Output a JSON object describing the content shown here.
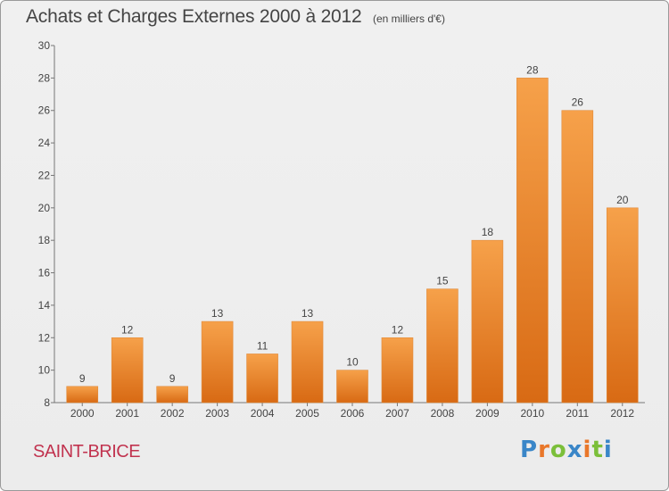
{
  "header": {
    "title": "Achats et Charges Externes 2000 à 2012",
    "subtitle": "(en milliers d'€)"
  },
  "footer": {
    "city": "SAINT-BRICE",
    "brand": "Proxiti"
  },
  "colors": {
    "bar_light": "#f6a14a",
    "bar_dark": "#d86a14",
    "city": "#c1334f",
    "brand_letters": [
      "#3a86c8",
      "#e9772a",
      "#7bbf3a",
      "#3a86c8",
      "#e9772a",
      "#7bbf3a",
      "#3a86c8"
    ]
  },
  "chart_data": {
    "type": "bar",
    "title": "Achats et Charges Externes 2000 à 2012",
    "subtitle": "(en milliers d'€)",
    "categories": [
      "2000",
      "2001",
      "2002",
      "2003",
      "2004",
      "2005",
      "2006",
      "2007",
      "2008",
      "2009",
      "2010",
      "2011",
      "2012"
    ],
    "values": [
      9,
      12,
      9,
      13,
      11,
      13,
      10,
      12,
      15,
      18,
      28,
      26,
      20
    ],
    "ylim": [
      8,
      30
    ],
    "yticks": [
      8,
      10,
      12,
      14,
      16,
      18,
      20,
      22,
      24,
      26,
      28,
      30
    ],
    "grid": false,
    "data_labels": true
  }
}
